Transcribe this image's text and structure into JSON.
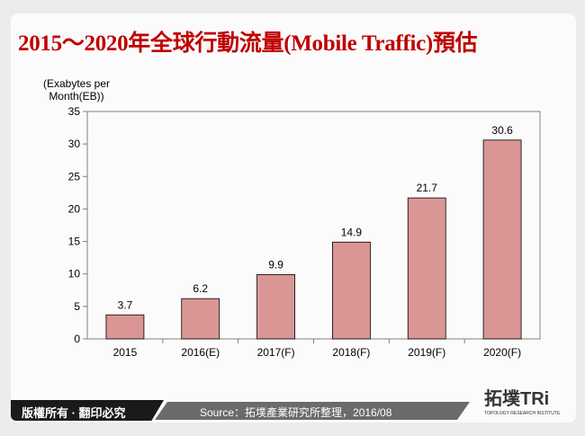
{
  "title": "2015～2020年全球行動流量(Mobile Traffic)預估",
  "footer": {
    "copyright": "版權所有 · 翻印必究",
    "source": "Source：拓墣產業研究所整理，2016/08",
    "logo_text": "拓墣TRi",
    "logo_sub": "TOPOLOGY RESEARCH INSTITUTE"
  },
  "chart_data": {
    "type": "bar",
    "categories": [
      "2015",
      "2016(E)",
      "2017(F)",
      "2018(F)",
      "2019(F)",
      "2020(F)"
    ],
    "values": [
      3.7,
      6.2,
      9.9,
      14.9,
      21.7,
      30.6
    ],
    "ylabel": "(Exabytes per Month(EB))",
    "ylabel_lines": [
      "(Exabytes per",
      "Month(EB))"
    ],
    "ylim": [
      0,
      35
    ],
    "yticks": [
      0,
      5,
      10,
      15,
      20,
      25,
      30,
      35
    ],
    "grid": false,
    "bar_color": "#d99694",
    "data_labels": true
  }
}
